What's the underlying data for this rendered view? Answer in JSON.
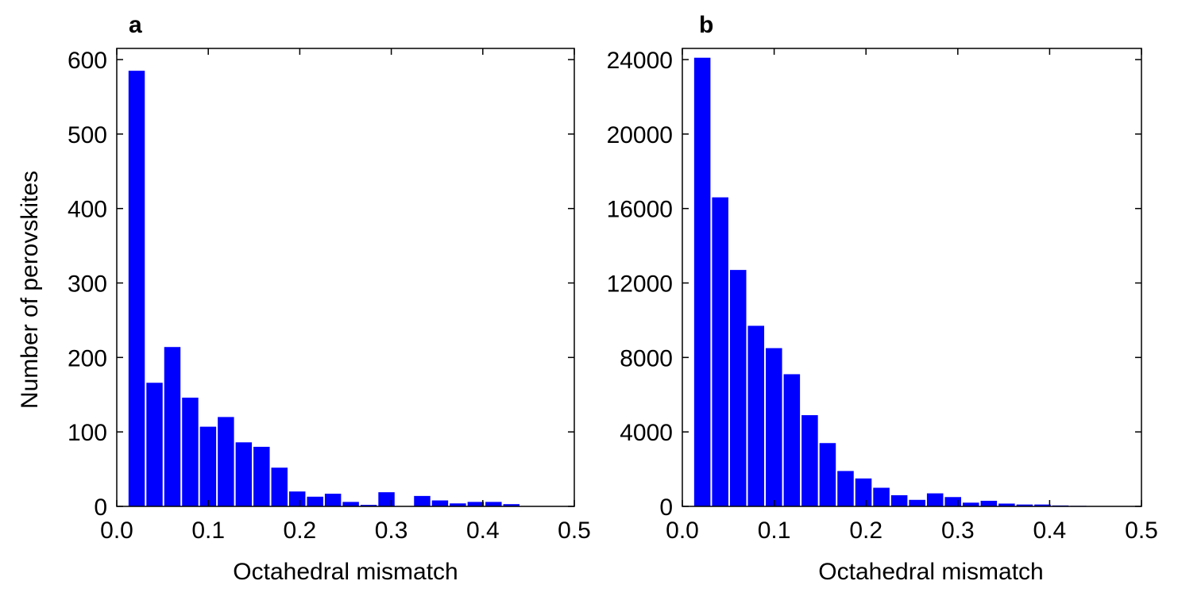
{
  "chart_data": [
    {
      "panel_label": "a",
      "type": "bar",
      "xlabel": "Octahedral mismatch",
      "ylabel": "Number of perovskites",
      "xlim": [
        0,
        0.5
      ],
      "ylim": [
        0,
        615
      ],
      "xticks": [
        "0.0",
        "0.1",
        "0.2",
        "0.3",
        "0.4",
        "0.5"
      ],
      "yticks": [
        "0",
        "100",
        "200",
        "300",
        "400",
        "500",
        "600"
      ],
      "bin_width": 0.0195,
      "bin_start": 0.012,
      "values": [
        585,
        166,
        214,
        146,
        107,
        120,
        86,
        80,
        52,
        20,
        13,
        17,
        6,
        2,
        19,
        0,
        14,
        8,
        4,
        6,
        6,
        3
      ],
      "bar_color": "#0000ff",
      "grid": false
    },
    {
      "panel_label": "b",
      "type": "bar",
      "xlabel": "Octahedral mismatch",
      "ylabel": "",
      "xlim": [
        0,
        0.5
      ],
      "ylim": [
        0,
        24600
      ],
      "xticks": [
        "0.0",
        "0.1",
        "0.2",
        "0.3",
        "0.4",
        "0.5"
      ],
      "yticks": [
        "0",
        "4000",
        "8000",
        "12000",
        "16000",
        "20000",
        "24000"
      ],
      "bin_width": 0.0195,
      "bin_start": 0.012,
      "values": [
        24100,
        16600,
        12700,
        9700,
        8500,
        7100,
        4900,
        3400,
        1900,
        1500,
        1000,
        600,
        350,
        700,
        500,
        200,
        300,
        150,
        100,
        100,
        50,
        30,
        20
      ],
      "bar_color": "#0000ff",
      "grid": false
    }
  ]
}
